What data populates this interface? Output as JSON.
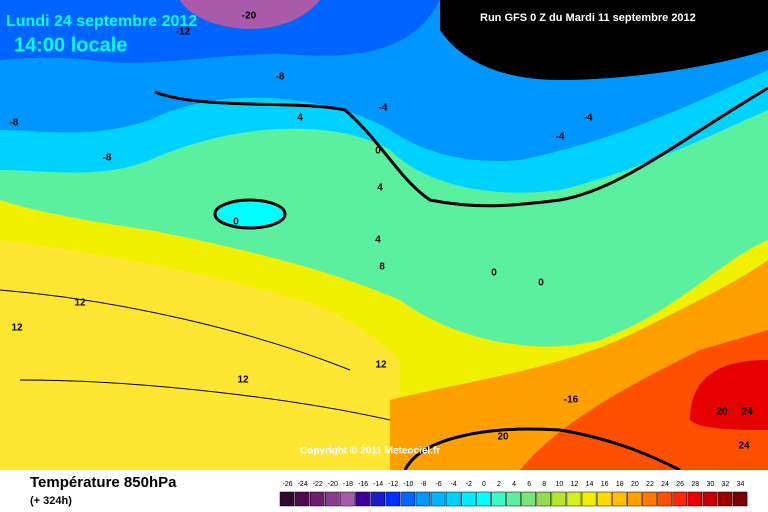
{
  "header": {
    "date": "Lundi 24 septembre 2012",
    "time": "14:00 locale",
    "run": "Run GFS 0 Z du Mardi 11 septembre 2012"
  },
  "copyright": "Copyright © 2011 Meteociel.fr",
  "contour_labels": [
    -20,
    -12,
    -8,
    -8,
    -8,
    -4,
    -4,
    -4,
    4,
    0,
    4,
    0,
    4,
    8,
    0,
    0,
    12,
    12,
    12,
    12,
    -16,
    20,
    24,
    20,
    24
  ],
  "legend": {
    "title": "Température 850hPa",
    "subtitle": "(+ 324h)",
    "levels": [
      -26,
      -24,
      -22,
      -20,
      -18,
      -16,
      -14,
      -12,
      -10,
      -8,
      -6,
      -4,
      -2,
      0,
      2,
      4,
      6,
      8,
      10,
      12,
      14,
      16,
      18,
      20,
      22,
      24,
      26,
      28,
      30,
      32,
      34
    ],
    "colors": [
      "#2d0a2d",
      "#500a50",
      "#6e1e6e",
      "#8c3c8c",
      "#aa5aaa",
      "#3c0096",
      "#1e1ec8",
      "#0032ff",
      "#0064ff",
      "#0096ff",
      "#00b4ff",
      "#00d2ff",
      "#00ebff",
      "#00ffff",
      "#3cfac8",
      "#5af0a0",
      "#78e678",
      "#96dc50",
      "#b4e632",
      "#d2f01e",
      "#f0f000",
      "#ffdc00",
      "#ffbe00",
      "#ffa000",
      "#ff7800",
      "#ff5000",
      "#ff2800",
      "#e60000",
      "#c80000",
      "#a00000",
      "#780000"
    ]
  }
}
